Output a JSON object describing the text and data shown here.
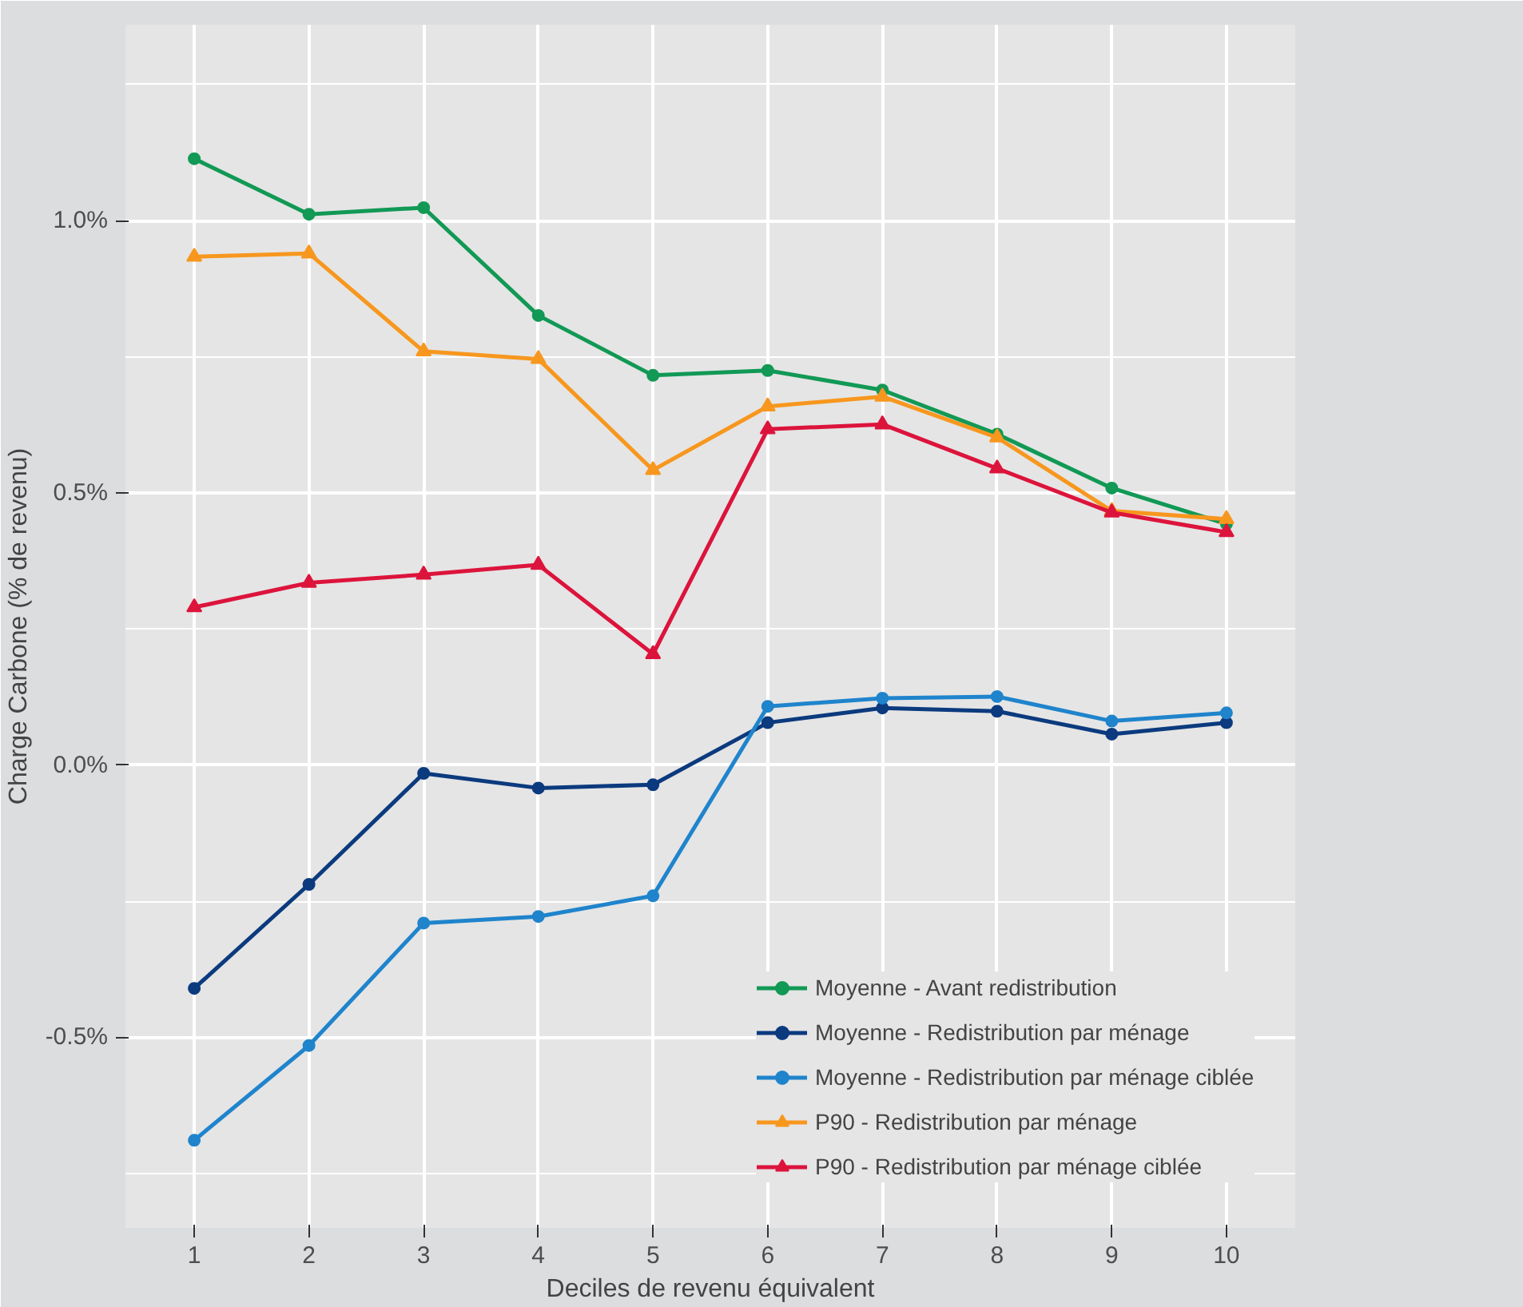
{
  "chart_data": {
    "type": "line",
    "xlabel": "Deciles de revenu équivalent",
    "ylabel": "Charge Carbone (% de revenu)",
    "x": [
      1,
      2,
      3,
      4,
      5,
      6,
      7,
      8,
      9,
      10
    ],
    "xlim": [
      0.4,
      10.6
    ],
    "xticks": [
      1,
      2,
      3,
      4,
      5,
      6,
      7,
      8,
      9,
      10
    ],
    "ylim": [
      -0.85,
      1.36
    ],
    "yticks": [
      {
        "value": -0.5,
        "label": "-0.5%"
      },
      {
        "value": 0,
        "label": "0.0%"
      },
      {
        "value": 0.5,
        "label": "0.5%"
      },
      {
        "value": 1,
        "label": "1.0%"
      }
    ],
    "grid": true,
    "legend": "bottom right",
    "line_style": "solid",
    "series": [
      {
        "name": "Moyenne - Avant redistribution",
        "color": "#119955",
        "marker": "circle",
        "values": [
          1.114,
          1.012,
          1.024,
          0.826,
          0.716,
          0.725,
          0.689,
          0.608,
          0.509,
          0.443
        ]
      },
      {
        "name": "Moyenne - Redistribution par ménage",
        "color": "#0b3a7e",
        "marker": "circle",
        "values": [
          -0.41,
          -0.219,
          -0.015,
          -0.042,
          -0.036,
          0.078,
          0.105,
          0.099,
          0.057,
          0.078
        ]
      },
      {
        "name": "Moyenne - Redistribution par ménage ciblée",
        "color": "#1f84cc",
        "marker": "circle",
        "values": [
          -0.689,
          -0.515,
          -0.29,
          -0.278,
          -0.24,
          0.108,
          0.123,
          0.126,
          0.081,
          0.096
        ]
      },
      {
        "name": "P90 - Redistribution par ménage",
        "color": "#f7971e",
        "marker": "triangle",
        "values": [
          0.934,
          0.94,
          0.76,
          0.746,
          0.542,
          0.659,
          0.677,
          0.602,
          0.467,
          0.452
        ]
      },
      {
        "name": "P90 - Redistribution par ménage ciblée",
        "color": "#dc143c",
        "marker": "triangle",
        "values": [
          0.29,
          0.335,
          0.35,
          0.368,
          0.204,
          0.617,
          0.626,
          0.545,
          0.464,
          0.428
        ]
      }
    ]
  }
}
